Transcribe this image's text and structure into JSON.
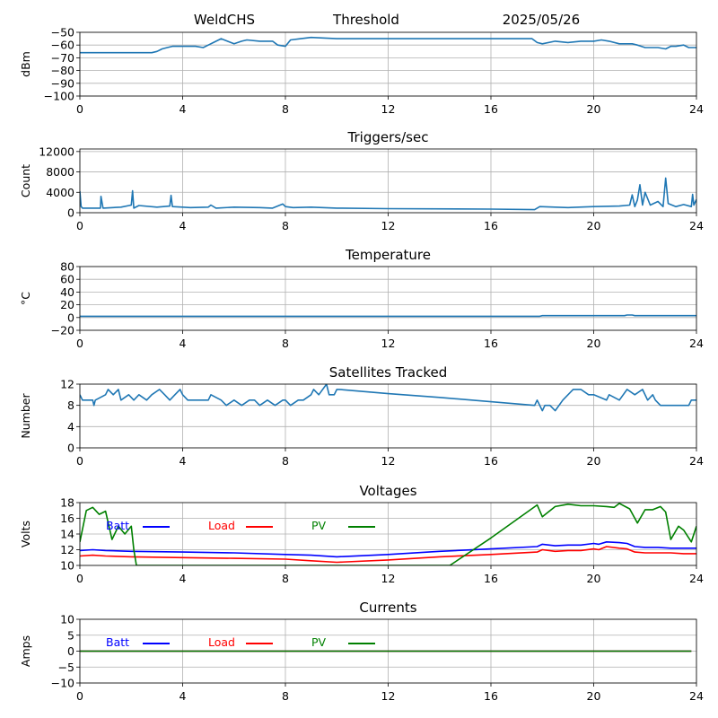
{
  "header": {
    "station": "WeldCHS",
    "label": "Threshold",
    "date": "2025/05/26"
  },
  "colors": {
    "series": "#1f77b4",
    "batt": "#0000ff",
    "load": "#ff0000",
    "pv": "#008000"
  },
  "chart_data": [
    {
      "id": "threshold",
      "type": "line",
      "title": "",
      "ylabel": "dBm",
      "xlim": [
        0,
        24
      ],
      "ylim": [
        -100,
        -50
      ],
      "xticks": [
        "0",
        "4",
        "8",
        "12",
        "16",
        "20",
        "24"
      ],
      "yticks": [
        "−100",
        "−90",
        "−80",
        "−70",
        "−60",
        "−50"
      ],
      "grid": true,
      "series": [
        {
          "color": "#1f77b4",
          "x": [
            0,
            1,
            2,
            2.8,
            3.0,
            3.2,
            3.4,
            3.6,
            4.0,
            4.5,
            4.8,
            5.0,
            5.2,
            5.5,
            6.0,
            6.3,
            6.5,
            7.0,
            7.5,
            7.7,
            8.0,
            8.2,
            8.6,
            9.0,
            10.0,
            12.0,
            16.0,
            17.6,
            17.8,
            18.0,
            18.5,
            19.0,
            19.5,
            20.0,
            20.3,
            20.6,
            21.0,
            21.5,
            21.7,
            22.0,
            22.5,
            22.8,
            23.0,
            23.2,
            23.5,
            23.7,
            24.0
          ],
          "y": [
            -66,
            -66,
            -66,
            -66,
            -65,
            -63,
            -62,
            -61,
            -61,
            -61,
            -62,
            -60,
            -58,
            -55,
            -59,
            -57,
            -56,
            -57,
            -57,
            -60,
            -61,
            -56,
            -55,
            -54,
            -55,
            -55,
            -55,
            -55,
            -58,
            -59,
            -57,
            -58,
            -57,
            -57,
            -56,
            -57,
            -59,
            -59,
            -60,
            -62,
            -62,
            -63,
            -61,
            -61,
            -60,
            -62,
            -62
          ]
        }
      ]
    },
    {
      "id": "triggers",
      "type": "line",
      "title": "Triggers/sec",
      "ylabel": "Count",
      "xlim": [
        0,
        24
      ],
      "ylim": [
        0,
        12500
      ],
      "xticks": [
        "0",
        "4",
        "8",
        "12",
        "16",
        "20",
        "24"
      ],
      "yticks": [
        "0",
        "4000",
        "8000",
        "12000"
      ],
      "grid": true,
      "series": [
        {
          "color": "#1f77b4",
          "x": [
            0,
            0.05,
            0.1,
            0.8,
            0.82,
            0.9,
            1.6,
            2.0,
            2.05,
            2.1,
            2.3,
            3.0,
            3.5,
            3.55,
            3.6,
            4.0,
            4.3,
            5.0,
            5.1,
            5.3,
            6.0,
            7.0,
            7.5,
            7.9,
            8.0,
            8.3,
            9.0,
            10.0,
            12.0,
            16.0,
            17.7,
            17.9,
            18.5,
            19.0,
            20.0,
            21.0,
            21.4,
            21.5,
            21.6,
            21.7,
            21.8,
            21.9,
            22.0,
            22.2,
            22.5,
            22.7,
            22.8,
            22.9,
            23.2,
            23.5,
            23.8,
            23.85,
            23.9,
            24.0
          ],
          "y": [
            4200,
            1200,
            900,
            900,
            3200,
            900,
            1100,
            1500,
            4300,
            900,
            1400,
            1100,
            1300,
            3400,
            1200,
            1100,
            1000,
            1100,
            1500,
            900,
            1100,
            1000,
            900,
            1700,
            1200,
            1000,
            1100,
            900,
            800,
            700,
            600,
            1200,
            1100,
            1000,
            1200,
            1300,
            1500,
            3500,
            1200,
            2500,
            5500,
            1500,
            4000,
            1500,
            2200,
            1200,
            6800,
            1800,
            1200,
            1600,
            1200,
            3600,
            1500,
            2600
          ]
        }
      ]
    },
    {
      "id": "temperature",
      "type": "line",
      "title": "Temperature",
      "ylabel": "°C",
      "xlim": [
        0,
        24
      ],
      "ylim": [
        -20,
        80
      ],
      "xticks": [
        "0",
        "4",
        "8",
        "12",
        "16",
        "20",
        "24"
      ],
      "yticks": [
        "−20",
        "0",
        "20",
        "40",
        "60",
        "80"
      ],
      "grid": true,
      "series": [
        {
          "color": "#1f77b4",
          "x": [
            0,
            4,
            8,
            12,
            16,
            17.9,
            18.0,
            19.0,
            20.0,
            21.2,
            21.3,
            21.5,
            21.6,
            22.0,
            23.0,
            24.0
          ],
          "y": [
            2,
            2,
            2,
            2,
            2,
            2,
            3,
            3,
            3,
            3,
            4,
            4,
            3,
            3,
            3,
            3
          ]
        }
      ]
    },
    {
      "id": "satellites",
      "type": "line",
      "title": "Satellites Tracked",
      "ylabel": "Number",
      "xlim": [
        0,
        24
      ],
      "ylim": [
        0,
        12
      ],
      "xticks": [
        "0",
        "4",
        "8",
        "12",
        "16",
        "20",
        "24"
      ],
      "yticks": [
        "0",
        "4",
        "8",
        "12"
      ],
      "grid": true,
      "series": [
        {
          "color": "#1f77b4",
          "x": [
            0,
            0.1,
            0.2,
            0.5,
            0.55,
            0.6,
            1.0,
            1.1,
            1.3,
            1.5,
            1.6,
            1.9,
            2.1,
            2.3,
            2.6,
            2.8,
            3.1,
            3.3,
            3.5,
            3.7,
            3.9,
            4.0,
            4.2,
            4.4,
            4.8,
            5.0,
            5.1,
            5.5,
            5.7,
            6.0,
            6.3,
            6.6,
            6.8,
            7.0,
            7.3,
            7.6,
            7.9,
            8.0,
            8.2,
            8.5,
            8.7,
            9.0,
            9.1,
            9.3,
            9.6,
            9.7,
            9.9,
            10.0,
            10.1,
            12.0,
            14.0,
            17.7,
            17.8,
            18.0,
            18.1,
            18.3,
            18.5,
            18.8,
            19.0,
            19.2,
            19.5,
            19.8,
            20.0,
            20.5,
            20.6,
            21.0,
            21.3,
            21.6,
            21.9,
            22.1,
            22.3,
            22.4,
            22.6,
            22.8,
            23.0,
            23.5,
            23.7,
            23.8,
            24.0
          ],
          "y": [
            10,
            9,
            9,
            9,
            8,
            9,
            10,
            11,
            10,
            11,
            9,
            10,
            9,
            10,
            9,
            10,
            11,
            10,
            9,
            10,
            11,
            10,
            9,
            9,
            9,
            9,
            10,
            9,
            8,
            9,
            8,
            9,
            9,
            8,
            9,
            8,
            9,
            9,
            8,
            9,
            9,
            10,
            11,
            10,
            12,
            10,
            10,
            11,
            11,
            10.2,
            9.5,
            8,
            9,
            7,
            8,
            8,
            7,
            9,
            10,
            11,
            11,
            10,
            10,
            9,
            10,
            9,
            11,
            10,
            11,
            9,
            10,
            9,
            8,
            8,
            8,
            8,
            8,
            9,
            9
          ]
        }
      ]
    },
    {
      "id": "voltages",
      "type": "line",
      "title": "Voltages",
      "ylabel": "Volts",
      "xlim": [
        0,
        24
      ],
      "ylim": [
        10,
        18
      ],
      "xticks": [
        "0",
        "4",
        "8",
        "12",
        "16",
        "20",
        "24"
      ],
      "yticks": [
        "10",
        "12",
        "14",
        "16",
        "18"
      ],
      "grid": true,
      "legend": [
        "Batt",
        "Load",
        "PV"
      ],
      "series": [
        {
          "name": "Batt",
          "color": "#0000ff",
          "x": [
            0,
            0.5,
            1,
            2,
            4,
            6,
            8,
            9,
            10,
            12,
            14,
            16,
            17.8,
            18,
            18.5,
            19,
            19.5,
            20,
            20.2,
            20.5,
            21,
            21.3,
            21.6,
            22,
            22.5,
            23,
            23.5,
            24
          ],
          "y": [
            11.9,
            12.0,
            11.9,
            11.8,
            11.7,
            11.6,
            11.4,
            11.3,
            11.1,
            11.4,
            11.8,
            12.1,
            12.4,
            12.7,
            12.5,
            12.6,
            12.6,
            12.8,
            12.7,
            13.0,
            12.9,
            12.8,
            12.4,
            12.3,
            12.3,
            12.2,
            12.2,
            12.2
          ]
        },
        {
          "name": "Load",
          "color": "#ff0000",
          "x": [
            0,
            0.5,
            1,
            2,
            4,
            6,
            8,
            9,
            10,
            12,
            14,
            16,
            17.8,
            18,
            18.5,
            19,
            19.5,
            20,
            20.2,
            20.5,
            21,
            21.3,
            21.6,
            22,
            22.5,
            23,
            23.5,
            24
          ],
          "y": [
            11.2,
            11.3,
            11.2,
            11.1,
            11.0,
            10.9,
            10.8,
            10.6,
            10.4,
            10.7,
            11.1,
            11.4,
            11.7,
            12.0,
            11.8,
            11.9,
            11.9,
            12.1,
            12.0,
            12.4,
            12.2,
            12.1,
            11.7,
            11.6,
            11.6,
            11.6,
            11.5,
            11.5
          ]
        },
        {
          "name": "PV",
          "color": "#008000",
          "x": [
            0,
            0.25,
            0.5,
            0.75,
            1.0,
            1.25,
            1.5,
            1.75,
            2.0,
            2.1,
            2.2,
            14.4,
            16.0,
            17.8,
            18.0,
            18.5,
            19.0,
            19.5,
            20.0,
            20.5,
            20.8,
            21.0,
            21.4,
            21.7,
            22.0,
            22.3,
            22.6,
            22.8,
            23.0,
            23.3,
            23.5,
            23.8,
            24.0
          ],
          "y": [
            13.0,
            17.0,
            17.4,
            16.5,
            16.9,
            13.3,
            15.0,
            14.0,
            15.0,
            12.0,
            10.0,
            10.0,
            13.5,
            17.7,
            16.2,
            17.5,
            17.8,
            17.6,
            17.6,
            17.5,
            17.4,
            17.9,
            17.2,
            15.4,
            17.1,
            17.1,
            17.5,
            16.8,
            13.3,
            15.0,
            14.5,
            13.0,
            15.0
          ]
        }
      ]
    },
    {
      "id": "currents",
      "type": "line",
      "title": "Currents",
      "ylabel": "Amps",
      "xlim": [
        0,
        24
      ],
      "ylim": [
        -10,
        10
      ],
      "xticks": [
        "0",
        "4",
        "8",
        "12",
        "16",
        "20",
        "24"
      ],
      "yticks": [
        "−10",
        "−5",
        "0",
        "5",
        "10"
      ],
      "grid": true,
      "legend": [
        "Batt",
        "Load",
        "PV"
      ],
      "series": [
        {
          "name": "Batt",
          "color": "#0000ff",
          "x": [
            0,
            23.8
          ],
          "y": [
            0,
            0
          ]
        },
        {
          "name": "Load",
          "color": "#ff0000",
          "x": [
            0,
            23.8
          ],
          "y": [
            0,
            0
          ]
        },
        {
          "name": "PV",
          "color": "#008000",
          "x": [
            0,
            23.8
          ],
          "y": [
            0,
            0
          ]
        }
      ]
    }
  ]
}
